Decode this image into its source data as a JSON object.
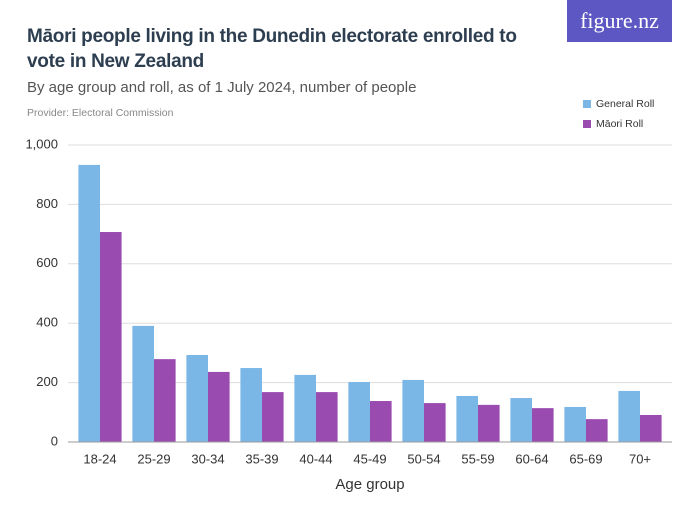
{
  "logo": "figure.nz",
  "chart_data": {
    "type": "bar",
    "title": "Māori people living in the Dunedin electorate enrolled to vote in New Zealand",
    "subtitle": "By age group and roll, as of 1 July 2024, number of people",
    "provider": "Provider: Electoral Commission",
    "x_label": "Age group",
    "categories": [
      "18-24",
      "25-29",
      "30-34",
      "35-39",
      "40-44",
      "45-49",
      "50-54",
      "55-59",
      "60-64",
      "65-69",
      "70+"
    ],
    "series": [
      {
        "name": "General Roll",
        "color": "#7ab6e6",
        "values": [
          933,
          391,
          293,
          249,
          226,
          202,
          209,
          155,
          148,
          118,
          172
        ]
      },
      {
        "name": "Māori Roll",
        "color": "#9a4bb0",
        "values": [
          707,
          279,
          236,
          168,
          168,
          138,
          131,
          125,
          114,
          77,
          91
        ]
      }
    ],
    "ylim": [
      0,
      1000
    ],
    "yticks": [
      0,
      200,
      400,
      600,
      800,
      {
        "value": 1000,
        "label": "1,000"
      }
    ],
    "grid": true
  }
}
